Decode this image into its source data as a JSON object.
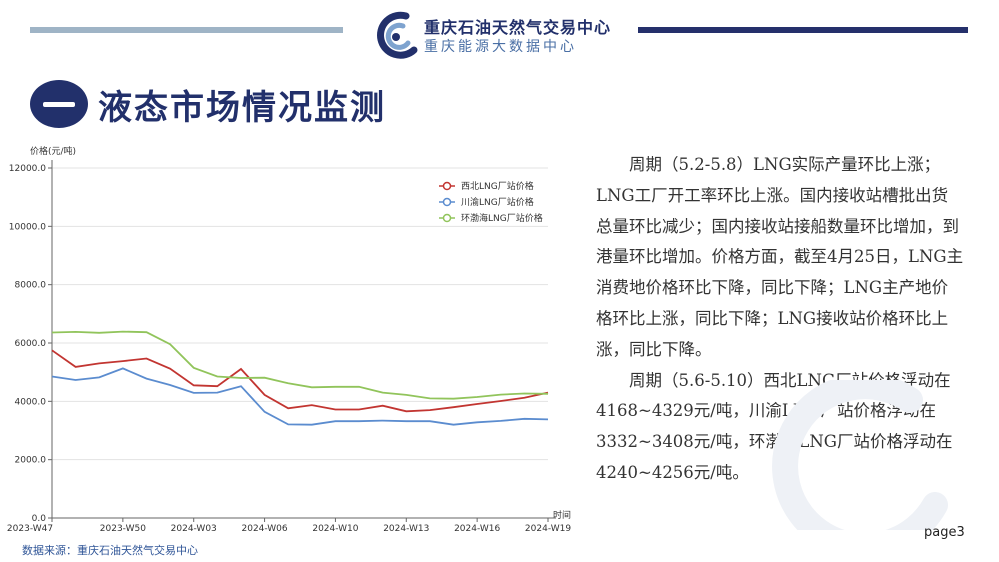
{
  "header": {
    "brand_line1": "重庆石油天然气交易中心",
    "brand_line2": "重庆能源大数据中心",
    "logo_icon": "company-logo-icon",
    "bar_colors": [
      "#9fb4c6",
      "#25306b"
    ]
  },
  "section": {
    "number": "一",
    "title": "液态市场情况监测"
  },
  "chart_data": {
    "type": "line",
    "ylabel": "价格(元/吨)",
    "xlabel": "时间",
    "ylim": [
      0,
      12000
    ],
    "yticks": [
      "0.0",
      "2000.0",
      "4000.0",
      "6000.0",
      "8000.0",
      "10000.0",
      "12000.0"
    ],
    "xtick_labels": [
      "2023-W47",
      "2023-W50",
      "2024-W03",
      "2024-W06",
      "2024-W10",
      "2024-W13",
      "2024-W16",
      "2024-W19"
    ],
    "grid": true,
    "legend_position": "top-right",
    "series": [
      {
        "name": "西北LNG厂站价格",
        "color": "#c23531",
        "values": [
          5750,
          5180,
          5300,
          5380,
          5470,
          5120,
          4550,
          4520,
          5110,
          4220,
          3760,
          3870,
          3720,
          3720,
          3850,
          3660,
          3700,
          3800,
          3910,
          4010,
          4120,
          4300
        ]
      },
      {
        "name": "川渝LNG厂站价格",
        "color": "#5b8ccf",
        "values": [
          4850,
          4730,
          4820,
          5130,
          4780,
          4560,
          4290,
          4300,
          4520,
          3640,
          3210,
          3200,
          3320,
          3320,
          3340,
          3320,
          3320,
          3200,
          3280,
          3330,
          3400,
          3380
        ]
      },
      {
        "name": "环渤海LNG厂站价格",
        "color": "#91c45b",
        "values": [
          6360,
          6380,
          6350,
          6390,
          6370,
          5960,
          5150,
          4850,
          4800,
          4810,
          4620,
          4480,
          4500,
          4500,
          4300,
          4220,
          4100,
          4090,
          4150,
          4230,
          4270,
          4260
        ]
      }
    ]
  },
  "source": "数据来源：重庆石油天然气交易中心",
  "paragraphs": [
    "周期（5.2-5.8）LNG实际产量环比上涨；LNG工厂开工率环比上涨。国内接收站槽批出货总量环比减少；国内接收站接船数量环比增加，到港量环比增加。价格方面，截至4月25日，LNG主消费地价格环比下降，同比下降；LNG主产地价格环比上涨，同比下降；LNG接收站价格环比上涨，同比下降。",
    "周期（5.6-5.10）西北LNG厂站价格浮动在4168~4329元/吨，川渝LNG厂站价格浮动在3332~3408元/吨，环渤海LNG厂站价格浮动在4240~4256元/吨。"
  ],
  "page": "page3"
}
